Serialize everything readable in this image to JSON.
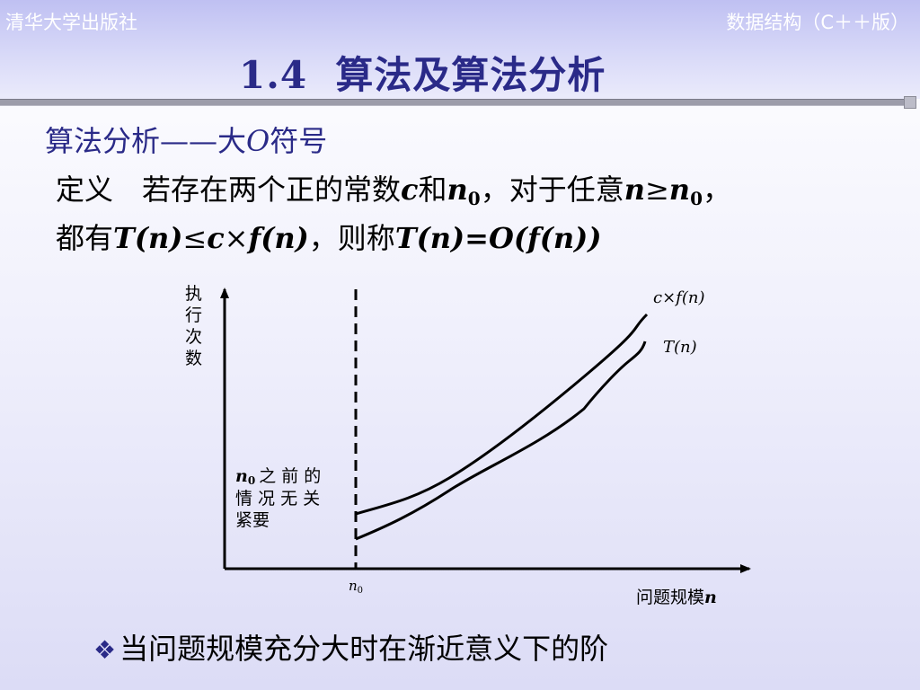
{
  "header": {
    "publisher": "清华大学出版社",
    "course": "数据结构（C＋＋版）",
    "title_num": "1.4",
    "title_text": "算法及算法分析"
  },
  "subtitle": {
    "prefix": "算法分析——大",
    "symbol": "O",
    "suffix": "符号"
  },
  "definition": {
    "line1": {
      "lead": "定义　若存在两个正的常数",
      "c": "c",
      "and": "和",
      "n0_base": "n",
      "n0_sub": "0",
      "mid": "，对于任意",
      "n": "n",
      "geq": "≥",
      "n0b_base": "n",
      "n0b_sub": "0",
      "tail": "，"
    },
    "line2": {
      "lead": "都有",
      "T": "T",
      "paren_n1": "(n)",
      "leq": "≤",
      "c": "c",
      "times": "×",
      "f": "f",
      "paren_n2": "(n)",
      "mid": "，则称",
      "T2": "T",
      "paren_n3": "(n)",
      "eq": "=",
      "O": "O",
      "open": "(",
      "f2": "f",
      "paren_n4": "(n)",
      "close": ")"
    }
  },
  "chart": {
    "y_axis_label_chars": [
      "执",
      "行",
      "次",
      "数"
    ],
    "x_axis_label_text": "问题规模",
    "x_axis_label_var": "n",
    "n0_tick_base": "n",
    "n0_tick_sub": "0",
    "upper_curve_label": "c×f(n)",
    "lower_curve_label": "T(n)",
    "note_n0_base": "n",
    "note_n0_sub": "0",
    "note_line1": "之 前 的",
    "note_line2": "情 况 无 关",
    "note_line3": "紧要"
  },
  "bottom": {
    "bullet_icon": "diamond-bullet-icon",
    "text": "当问题规模充分大时在渐近意义下的阶"
  },
  "colors": {
    "title": "#2a2a88",
    "header_text": "#ffffff",
    "background": "#e8e8fa"
  }
}
